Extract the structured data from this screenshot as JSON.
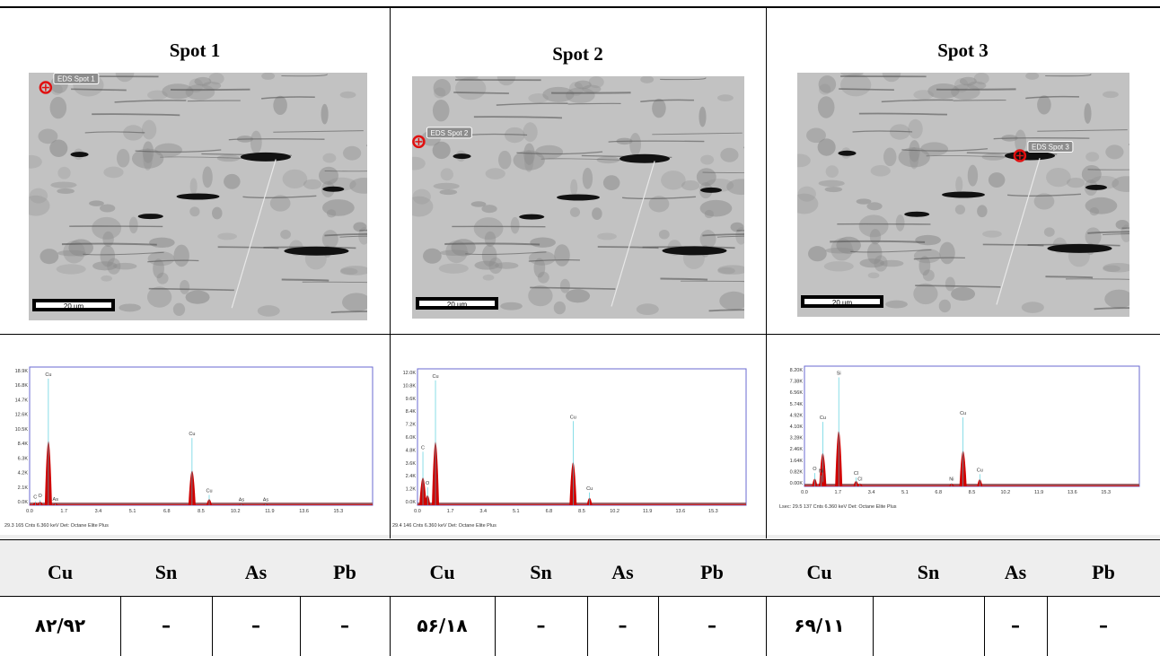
{
  "spots": [
    {
      "title": "Spot 1",
      "label": "EDS Spot 1",
      "scale": "20 um"
    },
    {
      "title": "Spot 2",
      "label": "EDS Spot 2",
      "scale": "20 um"
    },
    {
      "title": "Spot 3",
      "label": "EDS Spot 3",
      "scale": "20 um"
    }
  ],
  "spectra": [
    {
      "yticks": [
        "18.9K",
        "16.8K",
        "14.7K",
        "12.6K",
        "10.5K",
        "8.4K",
        "6.3K",
        "4.2K",
        "2.1K",
        "0.0K"
      ],
      "xticks": [
        "0.0",
        "1.7",
        "3.4",
        "5.1",
        "6.8",
        "8.5",
        "10.2",
        "11.9",
        "13.6",
        "15.3"
      ],
      "footer": "29.3    165 Cnts    6.360 keV    Det: Octane Elite Plus",
      "peaks": [
        {
          "label": "Cu",
          "kev": 0.93,
          "h": 0.98
        },
        {
          "label": "C",
          "kev": 0.28,
          "h": 0.03
        },
        {
          "label": "O",
          "kev": 0.52,
          "h": 0.04
        },
        {
          "label": "As",
          "kev": 1.28,
          "h": 0.015
        },
        {
          "label": "Cu",
          "kev": 8.05,
          "h": 0.52
        },
        {
          "label": "Cu",
          "kev": 8.9,
          "h": 0.08
        },
        {
          "label": "As",
          "kev": 10.5,
          "h": 0.01
        },
        {
          "label": "As",
          "kev": 11.7,
          "h": 0.01
        }
      ]
    },
    {
      "yticks": [
        "12.0K",
        "10.8K",
        "9.6K",
        "8.4K",
        "7.2K",
        "6.0K",
        "4.8K",
        "3.6K",
        "2.4K",
        "1.2K",
        "0.0K"
      ],
      "xticks": [
        "0.0",
        "1.7",
        "3.4",
        "5.1",
        "6.8",
        "8.5",
        "10.2",
        "11.9",
        "13.6",
        "15.3"
      ],
      "footer": "29.4    146 Cnts    6.360 keV    Det: Octane Elite Plus",
      "peaks": [
        {
          "label": "Cu",
          "kev": 0.93,
          "h": 0.98
        },
        {
          "label": "C",
          "kev": 0.28,
          "h": 0.42
        },
        {
          "label": "O",
          "kev": 0.52,
          "h": 0.14
        },
        {
          "label": "Cu",
          "kev": 8.05,
          "h": 0.66
        },
        {
          "label": "Cu",
          "kev": 8.9,
          "h": 0.1
        }
      ]
    },
    {
      "yticks": [
        "8.20K",
        "7.38K",
        "6.56K",
        "5.74K",
        "4.92K",
        "4.10K",
        "3.28K",
        "2.46K",
        "1.64K",
        "0.82K",
        "0.00K"
      ],
      "xticks": [
        "0.0",
        "1.7",
        "3.4",
        "5.1",
        "6.8",
        "8.5",
        "10.2",
        "11.9",
        "13.6",
        "15.3"
      ],
      "footer": "Lsec: 29.5    137 Cnts    6.360 keV    Det: Octane Elite Plus",
      "peaks": [
        {
          "label": "Si",
          "kev": 1.74,
          "h": 0.98
        },
        {
          "label": "Cu",
          "kev": 0.93,
          "h": 0.58
        },
        {
          "label": "O",
          "kev": 0.52,
          "h": 0.12
        },
        {
          "label": "Ni",
          "kev": 0.85,
          "h": 0.1
        },
        {
          "label": "Cl",
          "kev": 2.62,
          "h": 0.08
        },
        {
          "label": "Cl",
          "kev": 2.82,
          "h": 0.03
        },
        {
          "label": "Ni",
          "kev": 7.47,
          "h": 0.03
        },
        {
          "label": "Cu",
          "kev": 8.05,
          "h": 0.62
        },
        {
          "label": "Cu",
          "kev": 8.9,
          "h": 0.11
        }
      ]
    }
  ],
  "table": {
    "headers": [
      "Cu",
      "Sn",
      "As",
      "Pb",
      "Cu",
      "Sn",
      "As",
      "Pb",
      "Cu",
      "Sn",
      "As",
      "Pb"
    ],
    "values": [
      "۸۲/۹۲",
      "–",
      "–",
      "–",
      "۵۶/۱۸",
      "–",
      "–",
      "–",
      "۶۹/۱۱",
      "",
      "–",
      "–"
    ]
  },
  "colors": {
    "peak_fill": "#d00000",
    "trace": "#3cc8d8",
    "plot_border": "#6a6ad0",
    "header_bg": "#eeeeee"
  }
}
